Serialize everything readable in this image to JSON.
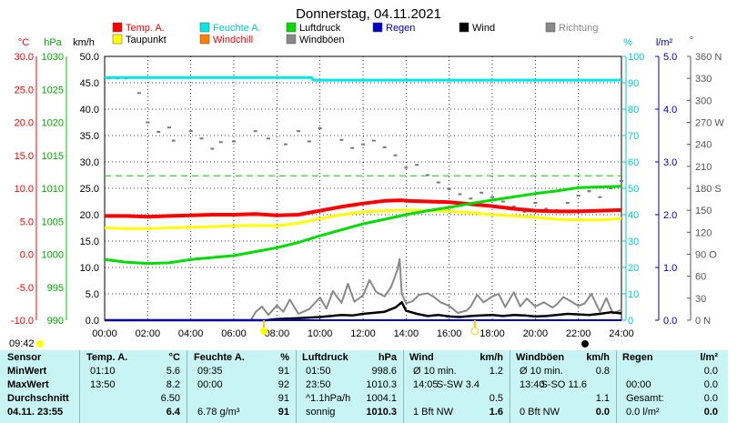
{
  "chart_data": {
    "type": "line",
    "title": "Donnerstag, 04.11.2021",
    "time_labels": [
      "00:00",
      "02:00",
      "04:00",
      "06:00",
      "08:00",
      "10:00",
      "12:00",
      "14:00",
      "16:00",
      "18:00",
      "20:00",
      "22:00",
      "24:00"
    ],
    "legend": [
      {
        "label": "Temp. A.",
        "color": "#ff0000"
      },
      {
        "label": "Feuchte A.",
        "color": "#00e8e8"
      },
      {
        "label": "Luftdruck",
        "color": "#00dd00"
      },
      {
        "label": "Regen",
        "color": "#0000cc"
      },
      {
        "label": "Wind",
        "color": "#000000"
      },
      {
        "label": "Richtung",
        "color": "#888888"
      },
      {
        "label": "Taupunkt",
        "color": "#ffff00"
      },
      {
        "label": "Windchill",
        "color": "#ff8000"
      },
      {
        "label": "Windböen",
        "color": "#888888"
      }
    ],
    "axes": {
      "temp": {
        "unit": "°C",
        "color": "#ff0000",
        "ticks": [
          "30.0",
          "25.0",
          "20.0",
          "15.0",
          "10.0",
          "5.0",
          "0.0",
          "-5.0",
          "-10.0"
        ],
        "range": [
          -10,
          30
        ]
      },
      "pressure": {
        "unit": "hPa",
        "color": "#00aa00",
        "ticks": [
          "1030",
          "1025",
          "1020",
          "1015",
          "1010",
          "1005",
          "1000",
          "995",
          "990"
        ],
        "range": [
          990,
          1030
        ]
      },
      "wind": {
        "unit": "km/h",
        "color": "#000000",
        "ticks": [
          "50.0",
          "45.0",
          "40.0",
          "35.0",
          "30.0",
          "25.0",
          "20.0",
          "15.0",
          "10.0",
          "5.0",
          "0.0"
        ],
        "range": [
          0,
          50
        ]
      },
      "humidity": {
        "unit": "%",
        "color": "#00e8e8",
        "ticks": [
          "100",
          "90",
          "80",
          "70",
          "60",
          "50",
          "40",
          "30",
          "20",
          "10",
          "0"
        ],
        "range": [
          0,
          100
        ]
      },
      "rain": {
        "unit": "l/m²",
        "color": "#0000cc",
        "ticks": [
          "5.0",
          "4.0",
          "3.0",
          "2.0",
          "1.0",
          "0.0"
        ],
        "range": [
          0,
          5
        ]
      },
      "direction": {
        "unit": "°",
        "color": "#555555",
        "ticks": [
          "360 N",
          "330",
          "300",
          "270 W",
          "240",
          "210",
          "180 S",
          "150",
          "120",
          "90 O",
          "60",
          "30",
          "0   N"
        ],
        "range": [
          0,
          360
        ]
      }
    },
    "series": [
      {
        "name": "Temp. A.",
        "color": "#ff0000",
        "axis": "temp",
        "x": [
          0,
          1,
          2,
          3,
          4,
          5,
          6,
          7,
          8,
          9,
          10,
          11,
          12,
          13,
          13.83,
          14,
          15,
          16,
          17,
          18,
          19,
          20,
          21,
          22,
          23,
          24
        ],
        "y": [
          5.8,
          5.8,
          5.7,
          5.8,
          5.9,
          6.0,
          6.0,
          6.1,
          5.9,
          6.0,
          6.6,
          7.2,
          7.7,
          8.1,
          8.2,
          8.1,
          8.0,
          7.9,
          7.6,
          7.3,
          6.9,
          6.6,
          6.5,
          6.5,
          6.6,
          6.7
        ]
      },
      {
        "name": "Taupunkt",
        "color": "#ffff00",
        "axis": "temp",
        "x": [
          0,
          1,
          2,
          3,
          4,
          5,
          6,
          7,
          8,
          9,
          10,
          11,
          12,
          13,
          14,
          15,
          16,
          17,
          18,
          19,
          20,
          21,
          22,
          23,
          24
        ],
        "y": [
          4.0,
          3.9,
          3.9,
          4.0,
          4.1,
          4.2,
          4.3,
          4.4,
          4.3,
          4.7,
          5.4,
          6.0,
          6.4,
          6.6,
          6.7,
          6.6,
          6.5,
          6.3,
          6.0,
          5.8,
          5.6,
          5.3,
          5.2,
          5.2,
          5.4
        ]
      },
      {
        "name": "Feuchte A.",
        "color": "#00e8e8",
        "axis": "humidity",
        "x": [
          0,
          9.6,
          9.7,
          24
        ],
        "y": [
          92,
          92,
          91,
          91
        ]
      },
      {
        "name": "Luftdruck",
        "color": "#00dd00",
        "axis": "pressure",
        "x": [
          0,
          1,
          2,
          3,
          4,
          5,
          6,
          7,
          8,
          9,
          10,
          11,
          12,
          13,
          14,
          15,
          16,
          17,
          18,
          19,
          20,
          21,
          22,
          23,
          24
        ],
        "y": [
          999.2,
          998.8,
          998.6,
          998.7,
          999.2,
          999.5,
          999.8,
          1000.4,
          1001.0,
          1001.8,
          1002.8,
          1003.7,
          1004.6,
          1005.3,
          1006.0,
          1006.6,
          1007.1,
          1007.7,
          1008.2,
          1008.7,
          1009.2,
          1009.6,
          1010.1,
          1010.2,
          1010.3
        ]
      },
      {
        "name": "Windböen",
        "color": "#888888",
        "axis": "wind",
        "x": [
          0,
          6.8,
          7,
          7.3,
          7.6,
          8,
          8.3,
          8.6,
          9,
          9.5,
          10,
          10.3,
          10.6,
          11,
          11.3,
          11.6,
          12,
          12.3,
          12.6,
          13,
          13.3,
          13.6,
          13.7,
          13.8,
          14,
          14.3,
          14.6,
          15,
          15.3,
          15.6,
          16,
          16.4,
          16.8,
          17,
          17.3,
          17.6,
          18,
          18.3,
          18.6,
          19,
          19.3,
          19.6,
          20,
          20.4,
          20.8,
          21,
          21.3,
          21.6,
          22,
          22.3,
          22.6,
          23,
          23.3,
          23.6,
          24
        ],
        "y": [
          0,
          0,
          1.5,
          2.6,
          1.0,
          2.8,
          1.6,
          3.9,
          1.2,
          2.1,
          4.3,
          2.2,
          5.5,
          3.3,
          6.9,
          3.5,
          4.7,
          7.6,
          5.4,
          4.5,
          6.3,
          9.6,
          11.6,
          5.0,
          3.2,
          3.6,
          4.8,
          5.1,
          4.4,
          3.4,
          2.7,
          1.4,
          1.8,
          2.6,
          4.8,
          3.4,
          4.5,
          5.0,
          2.5,
          5.3,
          2.6,
          4.1,
          2.6,
          3.4,
          2.4,
          3.0,
          4.4,
          3.7,
          2.7,
          3.2,
          5.0,
          1.6,
          4.2,
          1.3,
          2.0
        ]
      },
      {
        "name": "Wind",
        "color": "#000000",
        "axis": "wind",
        "x": [
          0,
          7.5,
          8,
          8.5,
          9,
          9.5,
          10,
          10.5,
          11,
          11.5,
          12,
          12.5,
          13,
          13.5,
          13.8,
          14,
          14.5,
          15,
          15.5,
          16,
          16.5,
          17,
          17.5,
          18,
          18.5,
          19,
          19.5,
          20,
          20.5,
          21,
          21.5,
          22,
          22.5,
          23,
          23.5,
          24
        ],
        "y": [
          0,
          0,
          0.2,
          0.3,
          0.4,
          0.5,
          0.6,
          0.8,
          1.0,
          0.9,
          1.2,
          1.4,
          1.6,
          2.4,
          3.4,
          1.8,
          1.2,
          0.8,
          1.0,
          0.7,
          0.6,
          0.8,
          0.9,
          1.0,
          0.8,
          1.0,
          0.9,
          0.7,
          0.8,
          1.0,
          1.2,
          1.1,
          1.0,
          1.2,
          1.5,
          1.3
        ]
      },
      {
        "name": "Regen",
        "color": "#0000cc",
        "axis": "rain",
        "x": [
          0,
          24
        ],
        "y": [
          0,
          0
        ]
      }
    ],
    "direction_points_deg": [
      [
        0.2,
        330
      ],
      [
        0.6,
        330
      ],
      [
        1.0,
        330
      ],
      [
        1.6,
        310
      ],
      [
        2,
        270
      ],
      [
        2.5,
        257
      ],
      [
        3,
        263
      ],
      [
        3.2,
        245
      ],
      [
        4,
        258
      ],
      [
        4.5,
        248
      ],
      [
        5,
        234
      ],
      [
        5.4,
        243
      ],
      [
        6,
        244
      ],
      [
        7,
        258
      ],
      [
        7.6,
        248
      ],
      [
        8.4,
        240
      ],
      [
        9,
        258
      ],
      [
        9.5,
        244
      ],
      [
        10,
        262
      ],
      [
        11,
        246
      ],
      [
        11.5,
        235
      ],
      [
        12,
        240
      ],
      [
        12.5,
        245
      ],
      [
        13,
        236
      ],
      [
        13.5,
        225
      ],
      [
        14,
        208
      ],
      [
        14.5,
        212
      ],
      [
        15,
        198
      ],
      [
        15.5,
        188
      ],
      [
        16,
        179
      ],
      [
        16.5,
        172
      ],
      [
        17,
        166
      ],
      [
        17.5,
        174
      ],
      [
        18,
        168
      ],
      [
        18.5,
        162
      ],
      [
        19,
        155
      ],
      [
        19.5,
        148
      ],
      [
        20,
        160
      ],
      [
        20.5,
        152
      ],
      [
        21,
        150
      ],
      [
        21.5,
        160
      ],
      [
        22,
        170
      ],
      [
        22.5,
        176
      ],
      [
        23,
        168
      ],
      [
        23.5,
        180
      ],
      [
        24,
        190
      ]
    ],
    "reference_line": {
      "axis": "temp",
      "value": 11.9,
      "color": "#00cc00",
      "style": "dashed"
    }
  },
  "time_left": "09:42",
  "table": {
    "sensor": {
      "header": "Sensor",
      "rows": [
        "MinWert",
        "MaxWert",
        "Durchschnitt",
        "04.11. 23:55"
      ]
    },
    "temp": {
      "header": "Temp. A.",
      "unit": "°C",
      "cells": [
        [
          "01:10",
          "5.6"
        ],
        [
          "13:50",
          "8.2"
        ],
        [
          "",
          "6.50"
        ],
        [
          "",
          "6.4"
        ]
      ]
    },
    "humidity": {
      "header": "Feuchte A.",
      "unit": "%",
      "cells": [
        [
          "09:35",
          "91"
        ],
        [
          "00:00",
          "92"
        ],
        [
          "",
          "91"
        ],
        [
          "6.78 g/m³",
          "91"
        ]
      ]
    },
    "pressure": {
      "header": "Luftdruck",
      "unit": "hPa",
      "cells": [
        [
          "01:50",
          "998.6"
        ],
        [
          "23:50",
          "1010.3"
        ],
        [
          "^1.1hPa/h",
          "1004.1"
        ],
        [
          "sonnig",
          "1010.3"
        ]
      ]
    },
    "wind": {
      "header": "Wind",
      "unit": "km/h",
      "cells": [
        [
          "Ø 10 min.",
          "",
          "1.2"
        ],
        [
          "14:05",
          "S-SW 3.4",
          ""
        ],
        [
          "",
          "",
          "0.5"
        ],
        [
          "1 Bft NW",
          "",
          "1.6"
        ]
      ]
    },
    "gusts": {
      "header": "Windböen",
      "unit": "km/h",
      "cells": [
        [
          "Ø 10 min.",
          "",
          "0.8"
        ],
        [
          "13:40",
          "S-SO 11.6",
          ""
        ],
        [
          "",
          "",
          "1.1"
        ],
        [
          "0 Bft NW",
          "",
          "0.0"
        ]
      ]
    },
    "rain": {
      "header": "Regen",
      "unit": "l/m²",
      "cells": [
        [
          "",
          "0.0"
        ],
        [
          "00:00",
          "0.0"
        ],
        [
          "Gesamt:",
          "0.0"
        ],
        [
          "0.0 l/m²",
          "0.0"
        ]
      ]
    }
  }
}
